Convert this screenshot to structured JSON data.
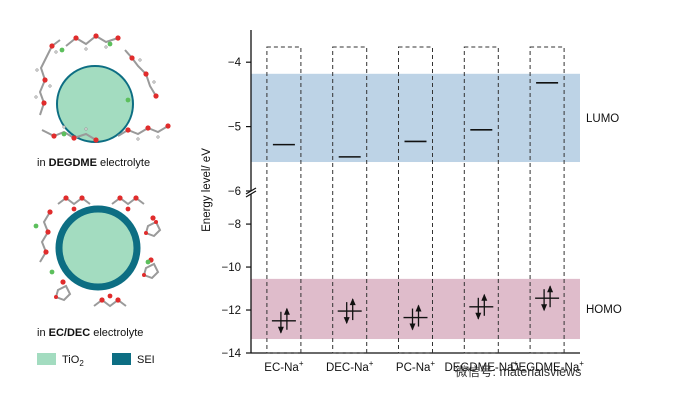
{
  "chart_data": {
    "type": "energy-level-diagram",
    "ylabel": "Energy level/ eV",
    "ylim_upper": [
      -6,
      -3.5
    ],
    "ylim_lower": [
      -14,
      -6.6
    ],
    "yticks": [
      -4,
      -5,
      -6,
      -8,
      -10,
      -12,
      -14
    ],
    "categories": [
      "EC-Na⁺",
      "DEC-Na⁺",
      "PC-Na⁺",
      "DEGDME-Na⁺",
      "DEGDME-Na⁺"
    ],
    "lumo": [
      -5.28,
      -5.47,
      -5.23,
      -5.05,
      -4.32
    ],
    "homo": [
      -12.5,
      -12.05,
      -12.35,
      -11.85,
      -11.45
    ],
    "lumo_band": [
      -5.55,
      -4.18
    ],
    "homo_band": [
      -13.35,
      -10.55
    ],
    "band_labels": {
      "lumo": "LUMO",
      "homo": "HOMO"
    },
    "colors": {
      "lumo_band": "#bdd3e6",
      "homo_band": "#dfbccb",
      "tio2": "#a3dcc0",
      "sei": "#0d6e83"
    }
  },
  "panel_top": {
    "prefix": "in ",
    "bold": "DEGDME",
    "suffix": " electrolyte"
  },
  "panel_bottom": {
    "prefix": "in ",
    "bold": "EC/DEC",
    "suffix": " electrolyte"
  },
  "legend": {
    "tio2": "TiO",
    "tio2_sub": "2",
    "sei": "SEI"
  },
  "watermark": "微信号: materialsviews"
}
